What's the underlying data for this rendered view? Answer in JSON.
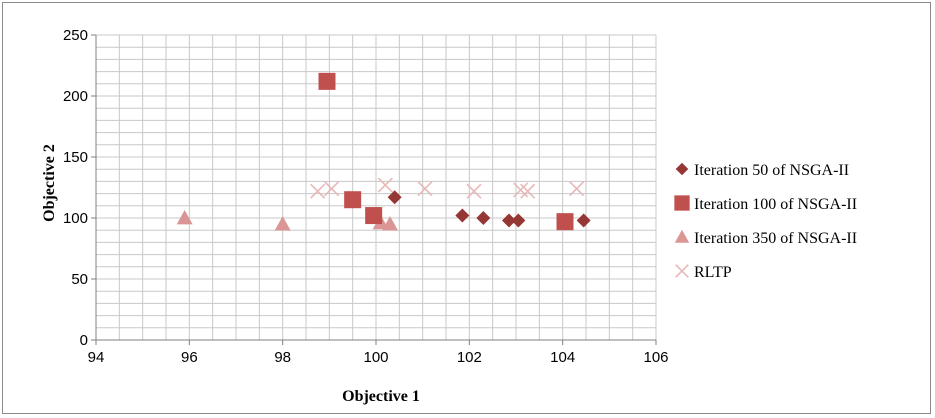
{
  "chart_data": {
    "type": "scatter",
    "title": "",
    "xlabel": "Objective 1",
    "ylabel": "Objective 2",
    "xlim": [
      94,
      106
    ],
    "ylim": [
      0,
      250
    ],
    "x_ticks": [
      94,
      96,
      98,
      100,
      102,
      104,
      106
    ],
    "y_ticks": [
      0,
      50,
      100,
      150,
      200,
      250
    ],
    "grid": true,
    "legend_position": "right",
    "series": [
      {
        "name": "Iteration 50 of NSGA-II",
        "marker": "diamond",
        "color": "#953735",
        "points": [
          [
            100.4,
            117
          ],
          [
            101.85,
            102
          ],
          [
            102.3,
            100
          ],
          [
            102.85,
            98
          ],
          [
            103.05,
            98
          ],
          [
            104.45,
            98
          ]
        ]
      },
      {
        "name": "Iteration 100 of NSGA-II",
        "marker": "square",
        "color": "#c0504d",
        "points": [
          [
            98.95,
            212
          ],
          [
            99.5,
            115
          ],
          [
            99.95,
            102
          ],
          [
            104.05,
            97
          ]
        ]
      },
      {
        "name": "Iteration 350 of NSGA-II",
        "marker": "triangle",
        "color": "#d99694",
        "points": [
          [
            95.9,
            100
          ],
          [
            98.0,
            95
          ],
          [
            100.1,
            96
          ],
          [
            100.3,
            95
          ]
        ]
      },
      {
        "name": "RLTP",
        "marker": "x",
        "color": "#e6b9b8",
        "points": [
          [
            98.75,
            122
          ],
          [
            99.05,
            124
          ],
          [
            100.2,
            127
          ],
          [
            101.05,
            124
          ],
          [
            102.1,
            122
          ],
          [
            103.1,
            123
          ],
          [
            103.25,
            122
          ],
          [
            104.3,
            124
          ]
        ]
      }
    ]
  }
}
